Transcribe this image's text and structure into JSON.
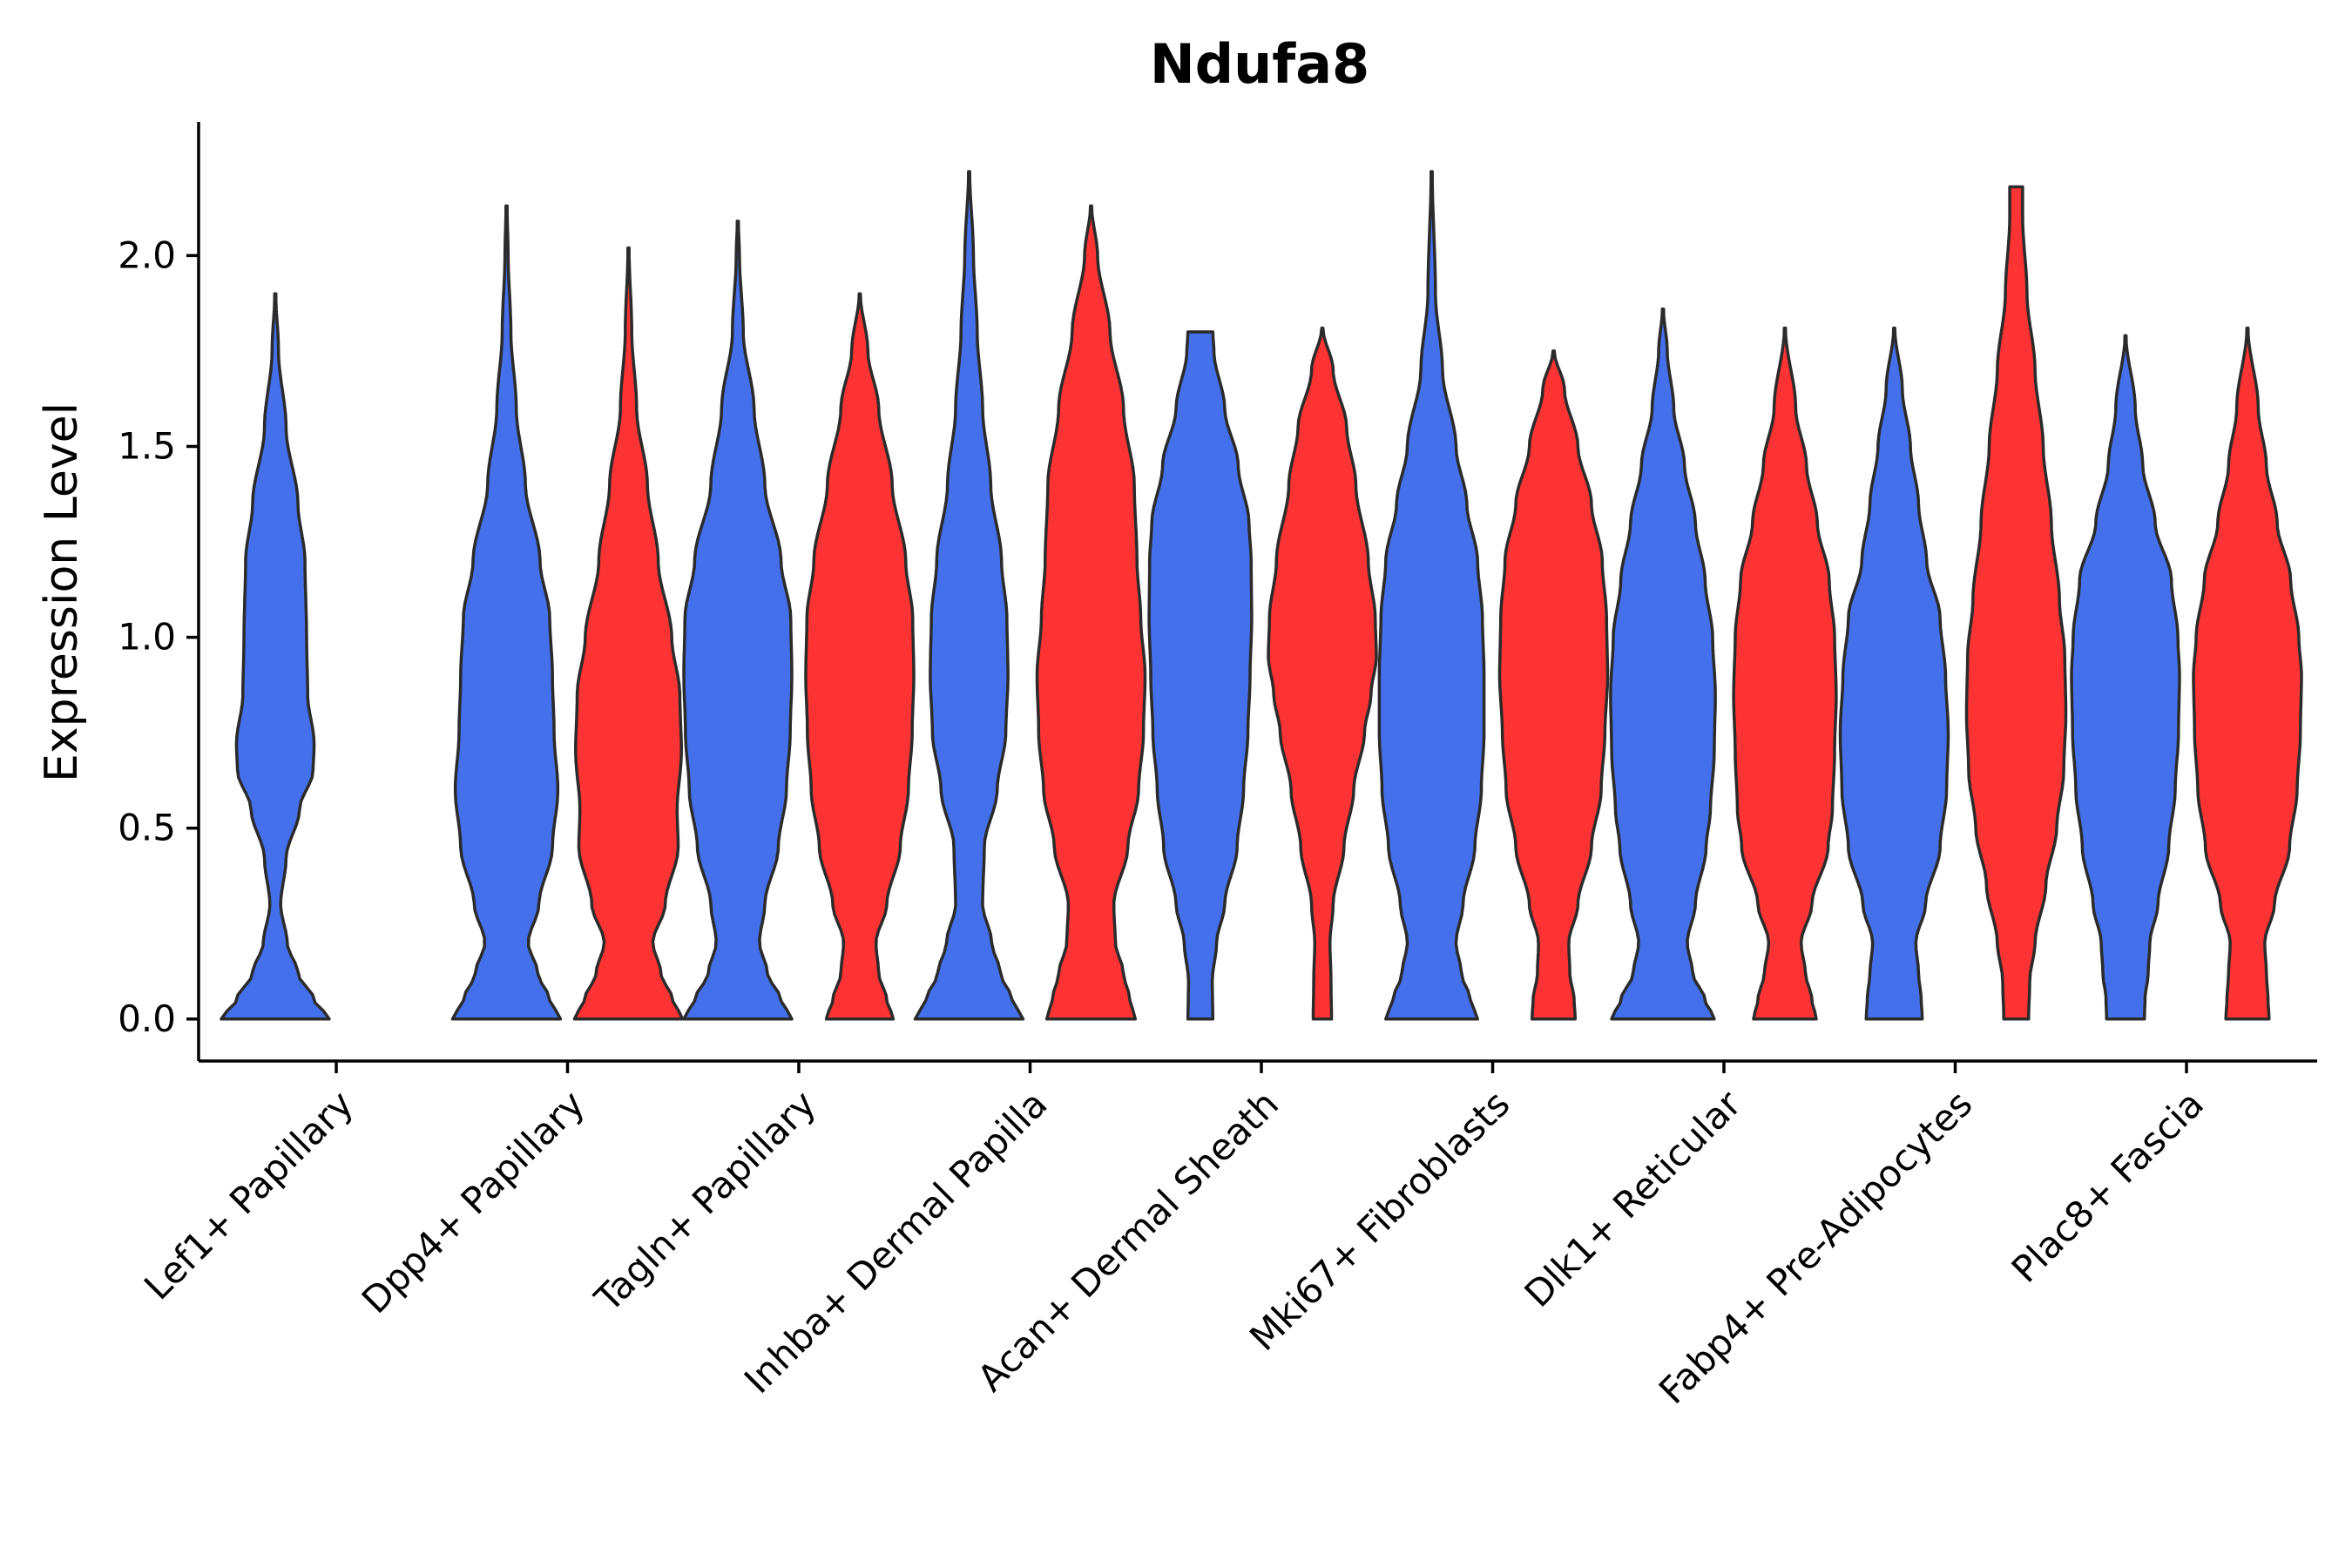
{
  "chart_data": {
    "type": "violin",
    "title": "Ndufa8",
    "xlabel": "",
    "ylabel": "Expression Level",
    "ylim": [
      -0.11,
      2.35
    ],
    "yticks": [
      {
        "value": 0.0,
        "label": "0.0"
      },
      {
        "value": 0.5,
        "label": "0.5"
      },
      {
        "value": 1.0,
        "label": "1.0"
      },
      {
        "value": 1.5,
        "label": "1.5"
      },
      {
        "value": 2.0,
        "label": "2.0"
      }
    ],
    "colors": {
      "blue": "#4570EB",
      "red": "#FF3333"
    },
    "categories": [
      "Lef1+ Papillary",
      "Dpp4+ Papillary",
      "Tagln+ Papillary",
      "Inhba+ Dermal Papilla",
      "Acan+ Dermal Sheath",
      "Mki67+ Fibroblasts",
      "Dlk1+ Reticular",
      "Fabp4+ Pre-Adipocytes",
      "Plac8+ Fascia"
    ],
    "violins": [
      {
        "category": 0,
        "split": "blue",
        "max": 1.9,
        "profile": [
          [
            0,
            1.0
          ],
          [
            0.05,
            0.72
          ],
          [
            0.12,
            0.42
          ],
          [
            0.2,
            0.22
          ],
          [
            0.3,
            0.1
          ],
          [
            0.42,
            0.2
          ],
          [
            0.55,
            0.45
          ],
          [
            0.65,
            0.7
          ],
          [
            0.72,
            0.72
          ],
          [
            0.85,
            0.6
          ],
          [
            1.0,
            0.58
          ],
          [
            1.2,
            0.55
          ],
          [
            1.35,
            0.42
          ],
          [
            1.55,
            0.2
          ],
          [
            1.75,
            0.06
          ],
          [
            1.9,
            0.01
          ]
        ]
      },
      {
        "category": 1,
        "split": "blue",
        "max": 2.13,
        "profile": [
          [
            0,
            1.0
          ],
          [
            0.05,
            0.8
          ],
          [
            0.12,
            0.58
          ],
          [
            0.2,
            0.4
          ],
          [
            0.3,
            0.6
          ],
          [
            0.45,
            0.85
          ],
          [
            0.6,
            0.95
          ],
          [
            0.75,
            0.88
          ],
          [
            0.9,
            0.85
          ],
          [
            1.05,
            0.8
          ],
          [
            1.2,
            0.62
          ],
          [
            1.4,
            0.35
          ],
          [
            1.6,
            0.18
          ],
          [
            1.8,
            0.08
          ],
          [
            2.0,
            0.03
          ],
          [
            2.13,
            0.01
          ]
        ]
      },
      {
        "category": 1,
        "split": "red",
        "max": 2.02,
        "profile": [
          [
            0,
            1.0
          ],
          [
            0.05,
            0.82
          ],
          [
            0.12,
            0.6
          ],
          [
            0.2,
            0.45
          ],
          [
            0.3,
            0.68
          ],
          [
            0.45,
            0.92
          ],
          [
            0.55,
            0.9
          ],
          [
            0.7,
            0.98
          ],
          [
            0.85,
            0.95
          ],
          [
            1.0,
            0.8
          ],
          [
            1.2,
            0.55
          ],
          [
            1.4,
            0.35
          ],
          [
            1.6,
            0.15
          ],
          [
            1.8,
            0.06
          ],
          [
            2.02,
            0.01
          ]
        ]
      },
      {
        "category": 2,
        "split": "blue",
        "max": 2.09,
        "profile": [
          [
            0,
            1.0
          ],
          [
            0.05,
            0.8
          ],
          [
            0.12,
            0.55
          ],
          [
            0.2,
            0.4
          ],
          [
            0.3,
            0.5
          ],
          [
            0.45,
            0.75
          ],
          [
            0.6,
            0.9
          ],
          [
            0.75,
            0.97
          ],
          [
            0.9,
            1.0
          ],
          [
            1.05,
            0.98
          ],
          [
            1.2,
            0.8
          ],
          [
            1.4,
            0.5
          ],
          [
            1.6,
            0.3
          ],
          [
            1.8,
            0.1
          ],
          [
            2.0,
            0.03
          ],
          [
            2.09,
            0.01
          ]
        ]
      },
      {
        "category": 2,
        "split": "red",
        "max": 1.9,
        "profile": [
          [
            0,
            0.62
          ],
          [
            0.05,
            0.5
          ],
          [
            0.12,
            0.35
          ],
          [
            0.2,
            0.3
          ],
          [
            0.3,
            0.5
          ],
          [
            0.45,
            0.75
          ],
          [
            0.6,
            0.9
          ],
          [
            0.75,
            0.97
          ],
          [
            0.9,
            1.0
          ],
          [
            1.05,
            0.98
          ],
          [
            1.2,
            0.85
          ],
          [
            1.4,
            0.6
          ],
          [
            1.6,
            0.35
          ],
          [
            1.75,
            0.15
          ],
          [
            1.9,
            0.01
          ]
        ]
      },
      {
        "category": 3,
        "split": "blue",
        "max": 2.22,
        "profile": [
          [
            0,
            1.0
          ],
          [
            0.05,
            0.8
          ],
          [
            0.12,
            0.58
          ],
          [
            0.2,
            0.42
          ],
          [
            0.3,
            0.25
          ],
          [
            0.45,
            0.28
          ],
          [
            0.6,
            0.52
          ],
          [
            0.75,
            0.68
          ],
          [
            0.9,
            0.72
          ],
          [
            1.05,
            0.7
          ],
          [
            1.2,
            0.6
          ],
          [
            1.4,
            0.4
          ],
          [
            1.6,
            0.25
          ],
          [
            1.8,
            0.15
          ],
          [
            2.0,
            0.08
          ],
          [
            2.22,
            0.01
          ]
        ]
      },
      {
        "category": 3,
        "split": "red",
        "max": 2.13,
        "profile": [
          [
            0,
            0.82
          ],
          [
            0.05,
            0.72
          ],
          [
            0.12,
            0.6
          ],
          [
            0.2,
            0.45
          ],
          [
            0.3,
            0.42
          ],
          [
            0.45,
            0.68
          ],
          [
            0.6,
            0.88
          ],
          [
            0.75,
            0.97
          ],
          [
            0.9,
            1.0
          ],
          [
            1.05,
            0.92
          ],
          [
            1.2,
            0.85
          ],
          [
            1.4,
            0.8
          ],
          [
            1.6,
            0.6
          ],
          [
            1.8,
            0.35
          ],
          [
            2.0,
            0.12
          ],
          [
            2.13,
            0.01
          ]
        ]
      },
      {
        "category": 4,
        "split": "blue",
        "max": 1.8,
        "profile": [
          [
            0,
            0.23
          ],
          [
            0.1,
            0.22
          ],
          [
            0.2,
            0.3
          ],
          [
            0.3,
            0.45
          ],
          [
            0.45,
            0.68
          ],
          [
            0.6,
            0.8
          ],
          [
            0.75,
            0.88
          ],
          [
            0.9,
            0.92
          ],
          [
            1.05,
            0.95
          ],
          [
            1.2,
            0.94
          ],
          [
            1.3,
            0.9
          ],
          [
            1.45,
            0.7
          ],
          [
            1.6,
            0.45
          ],
          [
            1.75,
            0.25
          ],
          [
            1.8,
            0.23
          ]
        ]
      },
      {
        "category": 4,
        "split": "red",
        "max": 1.81,
        "profile": [
          [
            0,
            0.17
          ],
          [
            0.1,
            0.16
          ],
          [
            0.2,
            0.14
          ],
          [
            0.3,
            0.2
          ],
          [
            0.45,
            0.4
          ],
          [
            0.6,
            0.58
          ],
          [
            0.75,
            0.78
          ],
          [
            0.85,
            0.9
          ],
          [
            0.95,
            1.0
          ],
          [
            1.05,
            0.98
          ],
          [
            1.2,
            0.85
          ],
          [
            1.4,
            0.62
          ],
          [
            1.55,
            0.45
          ],
          [
            1.7,
            0.2
          ],
          [
            1.81,
            0.01
          ]
        ]
      },
      {
        "category": 5,
        "split": "blue",
        "max": 2.22,
        "profile": [
          [
            0,
            0.85
          ],
          [
            0.05,
            0.72
          ],
          [
            0.12,
            0.55
          ],
          [
            0.2,
            0.45
          ],
          [
            0.3,
            0.58
          ],
          [
            0.45,
            0.8
          ],
          [
            0.6,
            0.92
          ],
          [
            0.75,
            0.97
          ],
          [
            0.9,
            0.97
          ],
          [
            1.05,
            0.94
          ],
          [
            1.2,
            0.85
          ],
          [
            1.35,
            0.65
          ],
          [
            1.5,
            0.45
          ],
          [
            1.7,
            0.2
          ],
          [
            1.9,
            0.07
          ],
          [
            2.22,
            0.01
          ]
        ]
      },
      {
        "category": 5,
        "split": "red",
        "max": 1.75,
        "profile": [
          [
            0,
            0.4
          ],
          [
            0.05,
            0.38
          ],
          [
            0.12,
            0.3
          ],
          [
            0.2,
            0.28
          ],
          [
            0.3,
            0.45
          ],
          [
            0.45,
            0.7
          ],
          [
            0.6,
            0.88
          ],
          [
            0.75,
            0.95
          ],
          [
            0.9,
            1.0
          ],
          [
            1.05,
            0.98
          ],
          [
            1.2,
            0.9
          ],
          [
            1.35,
            0.7
          ],
          [
            1.5,
            0.45
          ],
          [
            1.65,
            0.2
          ],
          [
            1.75,
            0.01
          ]
        ]
      },
      {
        "category": 6,
        "split": "blue",
        "max": 1.86,
        "profile": [
          [
            0,
            0.95
          ],
          [
            0.05,
            0.78
          ],
          [
            0.12,
            0.55
          ],
          [
            0.2,
            0.45
          ],
          [
            0.3,
            0.6
          ],
          [
            0.45,
            0.8
          ],
          [
            0.55,
            0.88
          ],
          [
            0.7,
            0.95
          ],
          [
            0.85,
            0.97
          ],
          [
            1.0,
            0.92
          ],
          [
            1.15,
            0.78
          ],
          [
            1.3,
            0.6
          ],
          [
            1.45,
            0.4
          ],
          [
            1.6,
            0.2
          ],
          [
            1.75,
            0.08
          ],
          [
            1.86,
            0.01
          ]
        ]
      },
      {
        "category": 6,
        "split": "red",
        "max": 1.81,
        "profile": [
          [
            0,
            0.58
          ],
          [
            0.05,
            0.5
          ],
          [
            0.12,
            0.38
          ],
          [
            0.2,
            0.3
          ],
          [
            0.3,
            0.5
          ],
          [
            0.45,
            0.8
          ],
          [
            0.55,
            0.88
          ],
          [
            0.7,
            0.92
          ],
          [
            0.85,
            0.95
          ],
          [
            1.0,
            0.92
          ],
          [
            1.15,
            0.82
          ],
          [
            1.3,
            0.6
          ],
          [
            1.45,
            0.4
          ],
          [
            1.6,
            0.2
          ],
          [
            1.81,
            0.01
          ]
        ]
      },
      {
        "category": 7,
        "split": "blue",
        "max": 1.81,
        "profile": [
          [
            0,
            0.52
          ],
          [
            0.05,
            0.5
          ],
          [
            0.12,
            0.45
          ],
          [
            0.2,
            0.4
          ],
          [
            0.3,
            0.58
          ],
          [
            0.45,
            0.85
          ],
          [
            0.6,
            0.97
          ],
          [
            0.75,
            1.0
          ],
          [
            0.9,
            0.95
          ],
          [
            1.05,
            0.85
          ],
          [
            1.2,
            0.6
          ],
          [
            1.35,
            0.45
          ],
          [
            1.5,
            0.3
          ],
          [
            1.65,
            0.15
          ],
          [
            1.81,
            0.01
          ]
        ]
      },
      {
        "category": 7,
        "split": "red",
        "max": 2.18,
        "profile": [
          [
            0,
            0.23
          ],
          [
            0.1,
            0.25
          ],
          [
            0.2,
            0.35
          ],
          [
            0.35,
            0.55
          ],
          [
            0.5,
            0.75
          ],
          [
            0.65,
            0.88
          ],
          [
            0.8,
            0.92
          ],
          [
            0.95,
            0.9
          ],
          [
            1.1,
            0.8
          ],
          [
            1.3,
            0.65
          ],
          [
            1.5,
            0.5
          ],
          [
            1.7,
            0.35
          ],
          [
            1.9,
            0.2
          ],
          [
            2.1,
            0.12
          ],
          [
            2.18,
            0.12
          ]
        ]
      },
      {
        "category": 8,
        "split": "blue",
        "max": 1.79,
        "profile": [
          [
            0,
            0.35
          ],
          [
            0.05,
            0.36
          ],
          [
            0.12,
            0.42
          ],
          [
            0.2,
            0.45
          ],
          [
            0.3,
            0.6
          ],
          [
            0.45,
            0.8
          ],
          [
            0.6,
            0.92
          ],
          [
            0.75,
            0.98
          ],
          [
            0.9,
            1.0
          ],
          [
            1.0,
            0.97
          ],
          [
            1.15,
            0.85
          ],
          [
            1.3,
            0.55
          ],
          [
            1.45,
            0.32
          ],
          [
            1.6,
            0.18
          ],
          [
            1.79,
            0.01
          ]
        ]
      },
      {
        "category": 8,
        "split": "red",
        "max": 1.81,
        "profile": [
          [
            0,
            0.4
          ],
          [
            0.05,
            0.38
          ],
          [
            0.12,
            0.35
          ],
          [
            0.2,
            0.32
          ],
          [
            0.3,
            0.5
          ],
          [
            0.45,
            0.78
          ],
          [
            0.6,
            0.92
          ],
          [
            0.75,
            0.98
          ],
          [
            0.9,
            1.0
          ],
          [
            1.0,
            0.95
          ],
          [
            1.15,
            0.8
          ],
          [
            1.3,
            0.55
          ],
          [
            1.45,
            0.35
          ],
          [
            1.6,
            0.2
          ],
          [
            1.81,
            0.01
          ]
        ]
      }
    ]
  }
}
